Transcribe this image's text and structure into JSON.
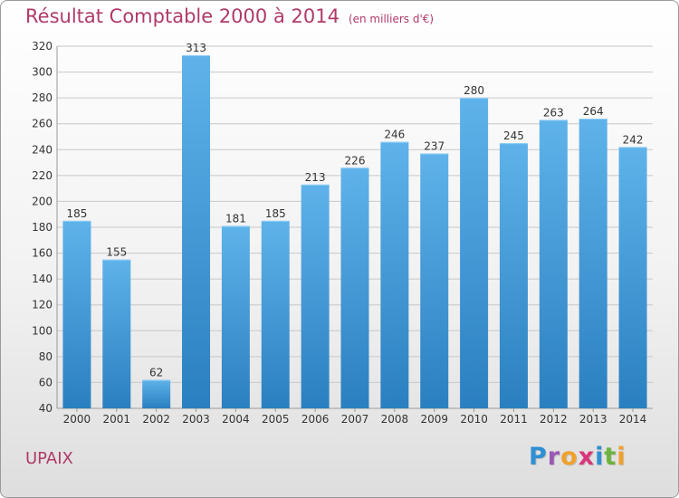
{
  "header": {
    "title": "Résultat Comptable 2000 à 2014",
    "unit": "(en milliers d'€)"
  },
  "footer": {
    "commune": "UPAIX",
    "brand": "Proxiti",
    "brand_letters": [
      {
        "char": "P",
        "color": "#2f8fd3"
      },
      {
        "char": "r",
        "color": "#9b59b6"
      },
      {
        "char": "o",
        "color": "#f0a12c"
      },
      {
        "char": "x",
        "color": "#d9367a"
      },
      {
        "char": "i",
        "color": "#2f8fd3"
      },
      {
        "char": "t",
        "color": "#6bb33c"
      },
      {
        "char": "i",
        "color": "#f0a12c"
      }
    ]
  },
  "colors": {
    "bar_top": "#5fb3ea",
    "bar_bottom": "#2a7fc0",
    "title": "#b03a68",
    "grid": "#c8c8c8",
    "axis_text": "#333333"
  },
  "chart_data": {
    "type": "bar",
    "title": "Résultat Comptable 2000 à 2014",
    "subtitle": "(en milliers d'€)",
    "xlabel": "",
    "ylabel": "",
    "categories": [
      "2000",
      "2001",
      "2002",
      "2003",
      "2004",
      "2005",
      "2006",
      "2007",
      "2008",
      "2009",
      "2010",
      "2011",
      "2012",
      "2013",
      "2014"
    ],
    "values": [
      185,
      155,
      62,
      313,
      181,
      185,
      213,
      226,
      246,
      237,
      280,
      245,
      263,
      264,
      242
    ],
    "ylim": [
      40,
      320
    ],
    "yticks": [
      40,
      60,
      80,
      100,
      120,
      140,
      160,
      180,
      200,
      220,
      240,
      260,
      280,
      300,
      320
    ],
    "grid": true,
    "legend": "none"
  }
}
